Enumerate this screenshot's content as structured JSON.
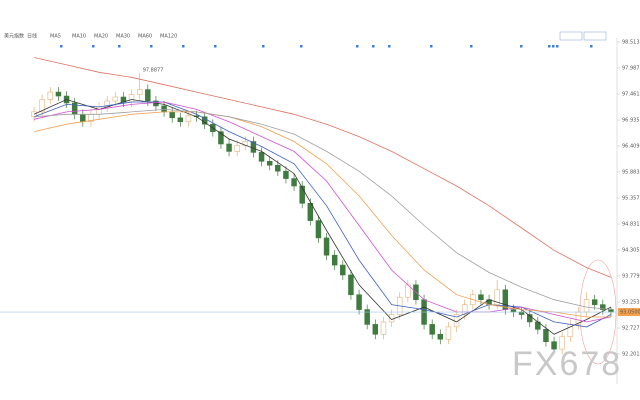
{
  "chart_data": {
    "type": "candlestick",
    "title": "美元指数",
    "period": "日线",
    "watermark": "FX678",
    "high_note": 97.8877,
    "last_price": {
      "value": 93.05,
      "label": "93.0500"
    },
    "ylim": [
      91.6753,
      98.5133
    ],
    "yticks": [
      98.5133,
      97.9873,
      97.4613,
      96.9353,
      96.4093,
      95.8833,
      95.3572,
      94.8312,
      94.3052,
      93.7792,
      93.2532,
      92.7272,
      92.2012
    ],
    "up_color": "#e3b27a",
    "down_color": "#3f7a3f",
    "open": [
      97.0,
      97.1,
      97.35,
      97.5,
      97.42,
      97.28,
      97.05,
      96.9,
      97.05,
      97.2,
      97.32,
      97.4,
      97.3,
      97.45,
      97.55,
      97.32,
      97.22,
      97.1,
      96.98,
      96.9,
      97.02,
      97.0,
      96.85,
      96.7,
      96.45,
      96.3,
      96.42,
      96.5,
      96.28,
      96.1,
      96.02,
      95.9,
      95.75,
      95.6,
      95.25,
      94.9,
      94.55,
      94.2,
      94.0,
      93.8,
      93.4,
      93.1,
      92.8,
      92.6,
      92.85,
      93.0,
      93.35,
      93.6,
      93.3,
      92.8,
      92.6,
      92.5,
      92.75,
      93.0,
      93.2,
      93.4,
      93.3,
      93.2,
      93.5,
      93.1,
      93.05,
      93.0,
      92.85,
      92.7,
      92.45,
      92.3,
      92.55,
      92.8,
      93.05,
      93.3,
      93.2,
      93.1
    ],
    "high": [
      97.2,
      97.45,
      97.6,
      97.6,
      97.52,
      97.38,
      97.15,
      97.15,
      97.3,
      97.42,
      97.5,
      97.5,
      97.55,
      97.8877,
      97.65,
      97.42,
      97.32,
      97.2,
      97.08,
      97.12,
      97.12,
      97.1,
      96.95,
      96.8,
      96.55,
      96.52,
      96.6,
      96.6,
      96.38,
      96.2,
      96.12,
      96.0,
      95.85,
      95.7,
      95.35,
      95.0,
      94.65,
      94.3,
      94.1,
      93.9,
      93.5,
      93.2,
      92.9,
      92.95,
      93.1,
      93.45,
      93.7,
      93.7,
      93.4,
      92.9,
      92.7,
      92.85,
      93.1,
      93.3,
      93.5,
      93.5,
      93.4,
      93.7,
      93.6,
      93.2,
      93.15,
      93.1,
      92.95,
      92.8,
      92.55,
      92.65,
      92.9,
      93.15,
      93.45,
      93.4,
      93.3,
      93.15
    ],
    "low": [
      96.9,
      97.0,
      97.25,
      97.32,
      97.18,
      96.95,
      96.8,
      96.8,
      96.95,
      97.1,
      97.22,
      97.2,
      97.2,
      97.35,
      97.22,
      97.12,
      97.0,
      96.88,
      96.8,
      96.8,
      96.9,
      96.75,
      96.6,
      96.35,
      96.2,
      96.2,
      96.32,
      96.18,
      96.0,
      95.92,
      95.8,
      95.65,
      95.5,
      95.15,
      94.8,
      94.45,
      94.1,
      93.9,
      93.7,
      93.3,
      93.0,
      92.7,
      92.5,
      92.5,
      92.75,
      92.9,
      93.25,
      93.2,
      92.7,
      92.5,
      92.4,
      92.4,
      92.65,
      92.9,
      93.1,
      93.2,
      93.1,
      93.1,
      93.0,
      92.95,
      92.9,
      92.75,
      92.6,
      92.35,
      92.2,
      92.2,
      92.45,
      92.7,
      92.95,
      93.1,
      93.0,
      92.95
    ],
    "close": [
      97.1,
      97.35,
      97.5,
      97.42,
      97.28,
      97.05,
      96.9,
      97.05,
      97.2,
      97.32,
      97.4,
      97.3,
      97.45,
      97.55,
      97.32,
      97.22,
      97.1,
      96.98,
      96.9,
      97.02,
      97.0,
      96.85,
      96.7,
      96.45,
      96.3,
      96.42,
      96.5,
      96.28,
      96.1,
      96.02,
      95.9,
      95.75,
      95.6,
      95.25,
      94.9,
      94.55,
      94.2,
      94.0,
      93.8,
      93.4,
      93.1,
      92.8,
      92.6,
      92.85,
      93.0,
      93.35,
      93.6,
      93.3,
      92.8,
      92.6,
      92.5,
      92.75,
      93.0,
      93.2,
      93.4,
      93.3,
      93.2,
      93.5,
      93.1,
      93.05,
      93.0,
      92.85,
      92.7,
      92.45,
      92.3,
      92.55,
      92.8,
      93.05,
      93.3,
      93.2,
      93.1,
      93.05
    ],
    "ma_x": [
      0,
      4,
      8,
      12,
      16,
      20,
      24,
      28,
      32,
      36,
      40,
      44,
      48,
      52,
      56,
      60,
      64,
      68,
      71
    ],
    "series": [
      {
        "name": "MA5",
        "color": "#333333",
        "values": [
          97.05,
          97.35,
          97.15,
          97.35,
          97.25,
          97.0,
          96.55,
          96.3,
          95.85,
          94.7,
          93.6,
          92.9,
          93.15,
          92.85,
          93.3,
          93.1,
          92.6,
          92.9,
          93.15
        ]
      },
      {
        "name": "MA10",
        "color": "#3d5fc4",
        "values": [
          97.0,
          97.25,
          97.2,
          97.3,
          97.3,
          97.05,
          96.7,
          96.4,
          96.05,
          95.2,
          94.1,
          93.2,
          93.1,
          92.95,
          93.2,
          93.15,
          92.85,
          92.75,
          93.0
        ]
      },
      {
        "name": "MA20",
        "color": "#d24fd2",
        "values": [
          96.95,
          97.1,
          97.15,
          97.25,
          97.3,
          97.15,
          96.9,
          96.6,
          96.3,
          95.7,
          94.8,
          93.9,
          93.3,
          93.05,
          93.05,
          93.15,
          93.0,
          92.85,
          92.95
        ]
      },
      {
        "name": "MA30",
        "color": "#f0a050",
        "values": [
          96.7,
          96.85,
          96.95,
          97.05,
          97.1,
          97.1,
          97.0,
          96.8,
          96.5,
          96.05,
          95.4,
          94.6,
          93.9,
          93.4,
          93.2,
          93.1,
          93.05,
          92.95,
          92.95
        ]
      },
      {
        "name": "MA60",
        "color": "#a0a0a0",
        "values": [
          97.0,
          97.05,
          97.05,
          97.1,
          97.15,
          97.1,
          97.0,
          96.85,
          96.65,
          96.3,
          95.9,
          95.4,
          94.8,
          94.25,
          93.85,
          93.55,
          93.3,
          93.15,
          93.1
        ]
      },
      {
        "name": "MA120",
        "color": "#e07060",
        "values": [
          98.2,
          98.05,
          97.9,
          97.8,
          97.65,
          97.5,
          97.35,
          97.2,
          97.05,
          96.85,
          96.6,
          96.3,
          95.95,
          95.6,
          95.2,
          94.75,
          94.3,
          93.95,
          93.75
        ]
      }
    ]
  }
}
